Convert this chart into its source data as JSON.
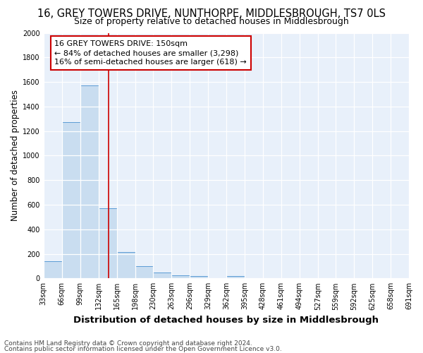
{
  "title": "16, GREY TOWERS DRIVE, NUNTHORPE, MIDDLESBROUGH, TS7 0LS",
  "subtitle": "Size of property relative to detached houses in Middlesbrough",
  "xlabel": "Distribution of detached houses by size in Middlesbrough",
  "ylabel": "Number of detached properties",
  "bar_edges": [
    33,
    66,
    99,
    132,
    165,
    198,
    230,
    263,
    296,
    329,
    362,
    395,
    428,
    461,
    494,
    527,
    559,
    592,
    625,
    658,
    691
  ],
  "bar_heights": [
    140,
    1270,
    1570,
    570,
    215,
    100,
    50,
    25,
    20,
    0,
    20,
    0,
    0,
    0,
    0,
    0,
    0,
    0,
    0,
    0
  ],
  "bar_color": "#c9ddf0",
  "bar_edge_color": "#5b9bd5",
  "bg_color": "#e8f0fa",
  "grid_color": "#ffffff",
  "vline_x": 150,
  "vline_color": "#cc0000",
  "ylim": [
    0,
    2000
  ],
  "yticks": [
    0,
    200,
    400,
    600,
    800,
    1000,
    1200,
    1400,
    1600,
    1800,
    2000
  ],
  "xtick_labels": [
    "33sqm",
    "66sqm",
    "99sqm",
    "132sqm",
    "165sqm",
    "198sqm",
    "230sqm",
    "263sqm",
    "296sqm",
    "329sqm",
    "362sqm",
    "395sqm",
    "428sqm",
    "461sqm",
    "494sqm",
    "527sqm",
    "559sqm",
    "592sqm",
    "625sqm",
    "658sqm",
    "691sqm"
  ],
  "annotation_line1": "16 GREY TOWERS DRIVE: 150sqm",
  "annotation_line2": "← 84% of detached houses are smaller (3,298)",
  "annotation_line3": "16% of semi-detached houses are larger (618) →",
  "annotation_box_color": "#ffffff",
  "annotation_edge_color": "#cc0000",
  "footer1": "Contains HM Land Registry data © Crown copyright and database right 2024.",
  "footer2": "Contains public sector information licensed under the Open Government Licence v3.0.",
  "title_fontsize": 10.5,
  "subtitle_fontsize": 9,
  "xlabel_fontsize": 9.5,
  "ylabel_fontsize": 8.5,
  "tick_fontsize": 7,
  "annotation_fontsize": 8,
  "footer_fontsize": 6.5,
  "fig_bg": "#ffffff"
}
